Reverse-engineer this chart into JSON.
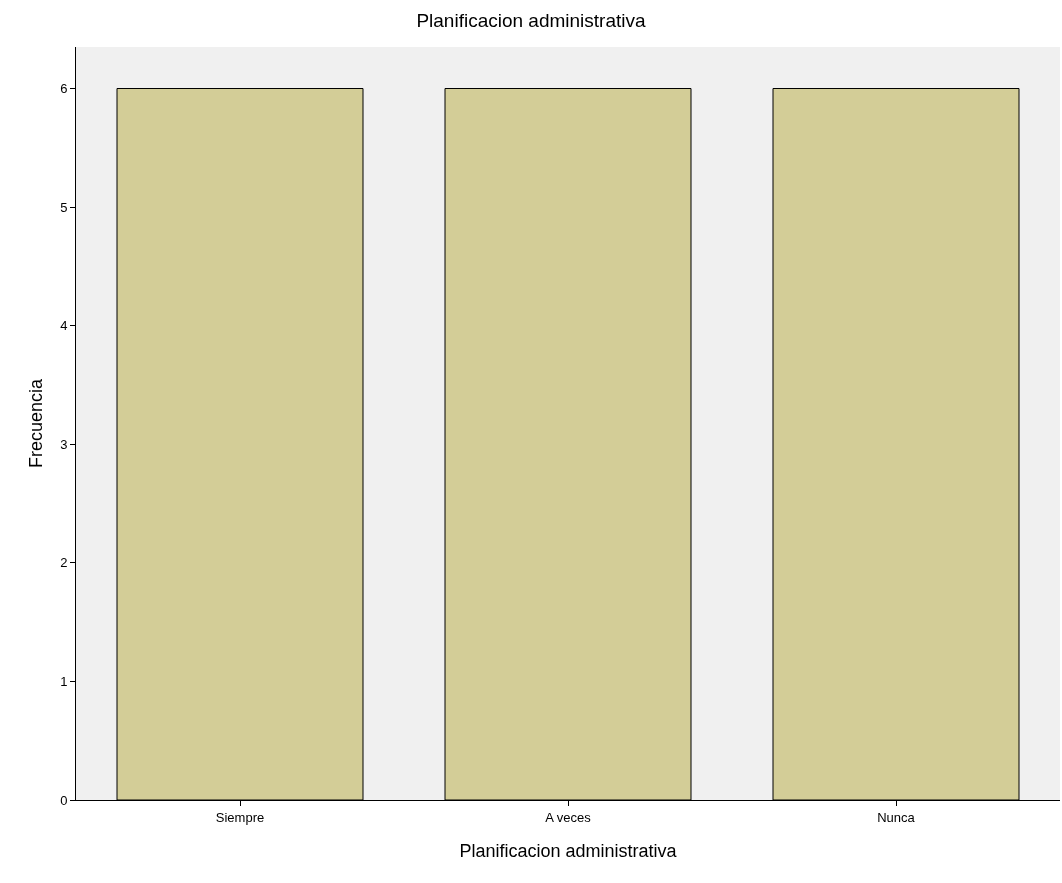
{
  "chart_data": {
    "type": "bar",
    "title": "Planificacion administrativa",
    "xlabel": "Planificacion administrativa",
    "ylabel": "Frecuencia",
    "categories": [
      "Siempre",
      "A veces",
      "Nunca"
    ],
    "values": [
      6,
      6,
      6
    ],
    "color": "#d3cd97",
    "ylim": [
      0,
      6.35
    ],
    "yticks": [
      0,
      1,
      2,
      3,
      4,
      5,
      6
    ],
    "grid": false
  }
}
